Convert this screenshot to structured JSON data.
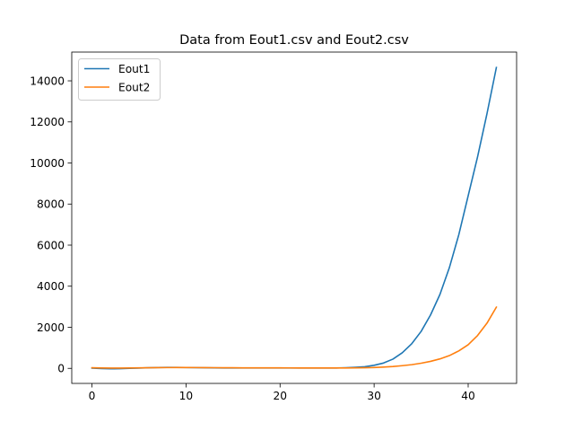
{
  "chart_data": {
    "type": "line",
    "title": "Data from Eout1.csv and Eout2.csv",
    "xlabel": "",
    "ylabel": "",
    "xlim": [
      -2.15,
      45.15
    ],
    "ylim": [
      -733,
      15400
    ],
    "xticks": [
      0,
      10,
      20,
      30,
      40
    ],
    "yticks": [
      0,
      2000,
      4000,
      6000,
      8000,
      10000,
      12000,
      14000
    ],
    "xtick_labels": [
      "0",
      "10",
      "20",
      "30",
      "40"
    ],
    "ytick_labels": [
      "0",
      "2000",
      "4000",
      "6000",
      "8000",
      "10000",
      "12000",
      "14000"
    ],
    "grid": false,
    "legend_position": "upper-left",
    "x": [
      0,
      1,
      2,
      3,
      4,
      5,
      6,
      7,
      8,
      9,
      10,
      11,
      12,
      13,
      14,
      15,
      16,
      17,
      18,
      19,
      20,
      21,
      22,
      23,
      24,
      25,
      26,
      27,
      28,
      29,
      30,
      31,
      32,
      33,
      34,
      35,
      36,
      37,
      38,
      39,
      40,
      41,
      42,
      43
    ],
    "series": [
      {
        "name": "Eout1",
        "color": "#1f77b4",
        "values": [
          10,
          -10,
          -20,
          -15,
          0,
          15,
          30,
          40,
          45,
          45,
          40,
          35,
          30,
          25,
          20,
          20,
          20,
          20,
          20,
          20,
          20,
          20,
          20,
          20,
          20,
          20,
          20,
          30,
          50,
          80,
          150,
          260,
          450,
          760,
          1200,
          1800,
          2600,
          3600,
          4900,
          6500,
          8400,
          10300,
          12400,
          14650
        ]
      },
      {
        "name": "Eout2",
        "color": "#ff7f0e",
        "values": [
          30,
          20,
          15,
          15,
          20,
          25,
          30,
          35,
          38,
          40,
          40,
          38,
          35,
          32,
          30,
          28,
          26,
          25,
          24,
          23,
          22,
          21,
          20,
          20,
          20,
          20,
          20,
          20,
          22,
          28,
          40,
          60,
          90,
          130,
          180,
          250,
          340,
          460,
          620,
          850,
          1150,
          1600,
          2200,
          2980
        ]
      }
    ]
  }
}
